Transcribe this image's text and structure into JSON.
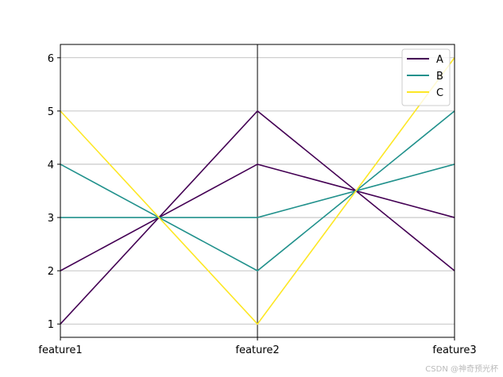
{
  "chart_data": {
    "type": "line",
    "subtype": "parallel-coordinates",
    "categories": [
      "feature1",
      "feature2",
      "feature3"
    ],
    "ylim": [
      0.75,
      6.25
    ],
    "yticks": [
      1,
      2,
      3,
      4,
      5,
      6
    ],
    "grid": true,
    "legend_position": "top-right",
    "series": [
      {
        "name": "A",
        "color": "#440154",
        "lines": [
          [
            1,
            5,
            2
          ],
          [
            2,
            4,
            3
          ]
        ]
      },
      {
        "name": "B",
        "color": "#21918c",
        "lines": [
          [
            4,
            2,
            5
          ],
          [
            3,
            3,
            4
          ]
        ]
      },
      {
        "name": "C",
        "color": "#fde725",
        "lines": [
          [
            5,
            1,
            6
          ]
        ]
      }
    ]
  },
  "watermark": "CSDN @神奇预光杯"
}
